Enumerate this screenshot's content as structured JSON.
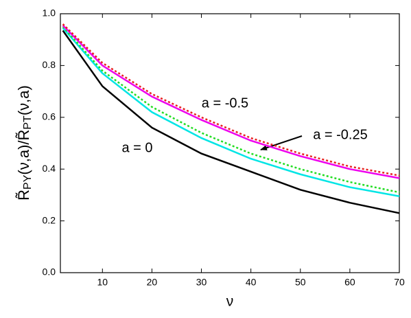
{
  "chart_data": {
    "type": "line",
    "x_label": "ν",
    "y_label_parts": [
      "R̃",
      "PY",
      "(ν,a)/",
      "R̃",
      "PT",
      "(ν,a)"
    ],
    "x": [
      2,
      10,
      20,
      30,
      40,
      50,
      60,
      70
    ],
    "series": [
      {
        "color": "#000000",
        "dashed": false,
        "values": [
          0.935,
          0.72,
          0.56,
          0.46,
          0.39,
          0.32,
          0.27,
          0.23
        ]
      },
      {
        "color": "#00e5e5",
        "dashed": false,
        "values": [
          0.945,
          0.77,
          0.62,
          0.52,
          0.44,
          0.38,
          0.33,
          0.295
        ]
      },
      {
        "color": "#22dd22",
        "dashed": true,
        "values": [
          0.95,
          0.78,
          0.64,
          0.54,
          0.46,
          0.4,
          0.35,
          0.31
        ]
      },
      {
        "color": "#ee00ee",
        "dashed": false,
        "values": [
          0.955,
          0.8,
          0.68,
          0.59,
          0.51,
          0.45,
          0.4,
          0.365
        ]
      },
      {
        "color": "#e82020",
        "dashed": true,
        "values": [
          0.96,
          0.81,
          0.69,
          0.6,
          0.52,
          0.46,
          0.41,
          0.375
        ]
      }
    ],
    "annotations": [
      "a = 0",
      "a = -0.5",
      "a = -0.25"
    ],
    "xlim": [
      1.5,
      70
    ],
    "xticks": [
      10,
      20,
      30,
      40,
      50,
      60,
      70
    ],
    "ylim": [
      0,
      1
    ],
    "yticks": [
      {
        "value": 0,
        "label": "0.0"
      },
      0.2,
      0.4,
      0.6,
      0.8,
      {
        "value": 1,
        "label": "1.0"
      }
    ]
  }
}
